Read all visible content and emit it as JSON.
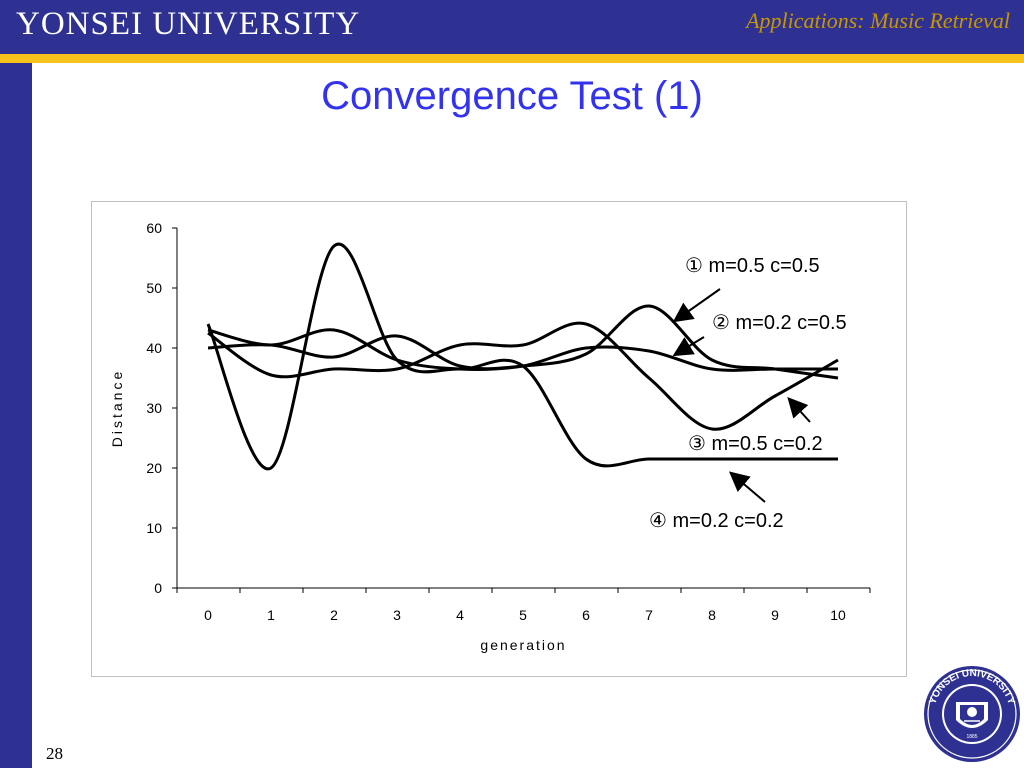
{
  "header": {
    "university": "YONSEI UNIVERSITY",
    "section": "Applications: Music Retrieval"
  },
  "slide": {
    "title": "Convergence Test (1)",
    "page_number": "28"
  },
  "seal": {
    "ring_text": "YONSEI UNIVERSITY",
    "year": "1885"
  },
  "colors": {
    "navy": "#2e3192",
    "gold": "#f7c21b",
    "title_blue": "#3333ee",
    "section_gold": "#c89600"
  },
  "chart_data": {
    "type": "line",
    "xlabel": "generation",
    "ylabel": "Distance",
    "x": [
      0,
      1,
      2,
      3,
      4,
      5,
      6,
      7,
      8,
      9,
      10
    ],
    "xlim": [
      0,
      10
    ],
    "ylim": [
      0,
      60
    ],
    "yticks": [
      0,
      10,
      20,
      30,
      40,
      50,
      60
    ],
    "grid": false,
    "series": [
      {
        "name": "① m=0.5 c=0.5",
        "values": [
          40,
          40.5,
          38.5,
          42,
          37,
          37,
          39,
          47,
          38,
          36.5,
          35
        ]
      },
      {
        "name": "② m=0.2 c=0.5",
        "values": [
          43,
          40.5,
          43,
          38,
          36.5,
          37,
          40,
          39.5,
          36.5,
          36.5,
          36.5
        ]
      },
      {
        "name": "③ m=0.5 c=0.2",
        "values": [
          42.5,
          35.5,
          36.5,
          36.5,
          40.5,
          40.5,
          44,
          35,
          26.5,
          32,
          38
        ]
      },
      {
        "name": "④ m=0.2 c=0.2",
        "values": [
          44,
          20,
          57,
          38,
          36.5,
          37,
          21.5,
          21.5,
          21.5,
          21.5,
          21.5
        ]
      }
    ]
  }
}
